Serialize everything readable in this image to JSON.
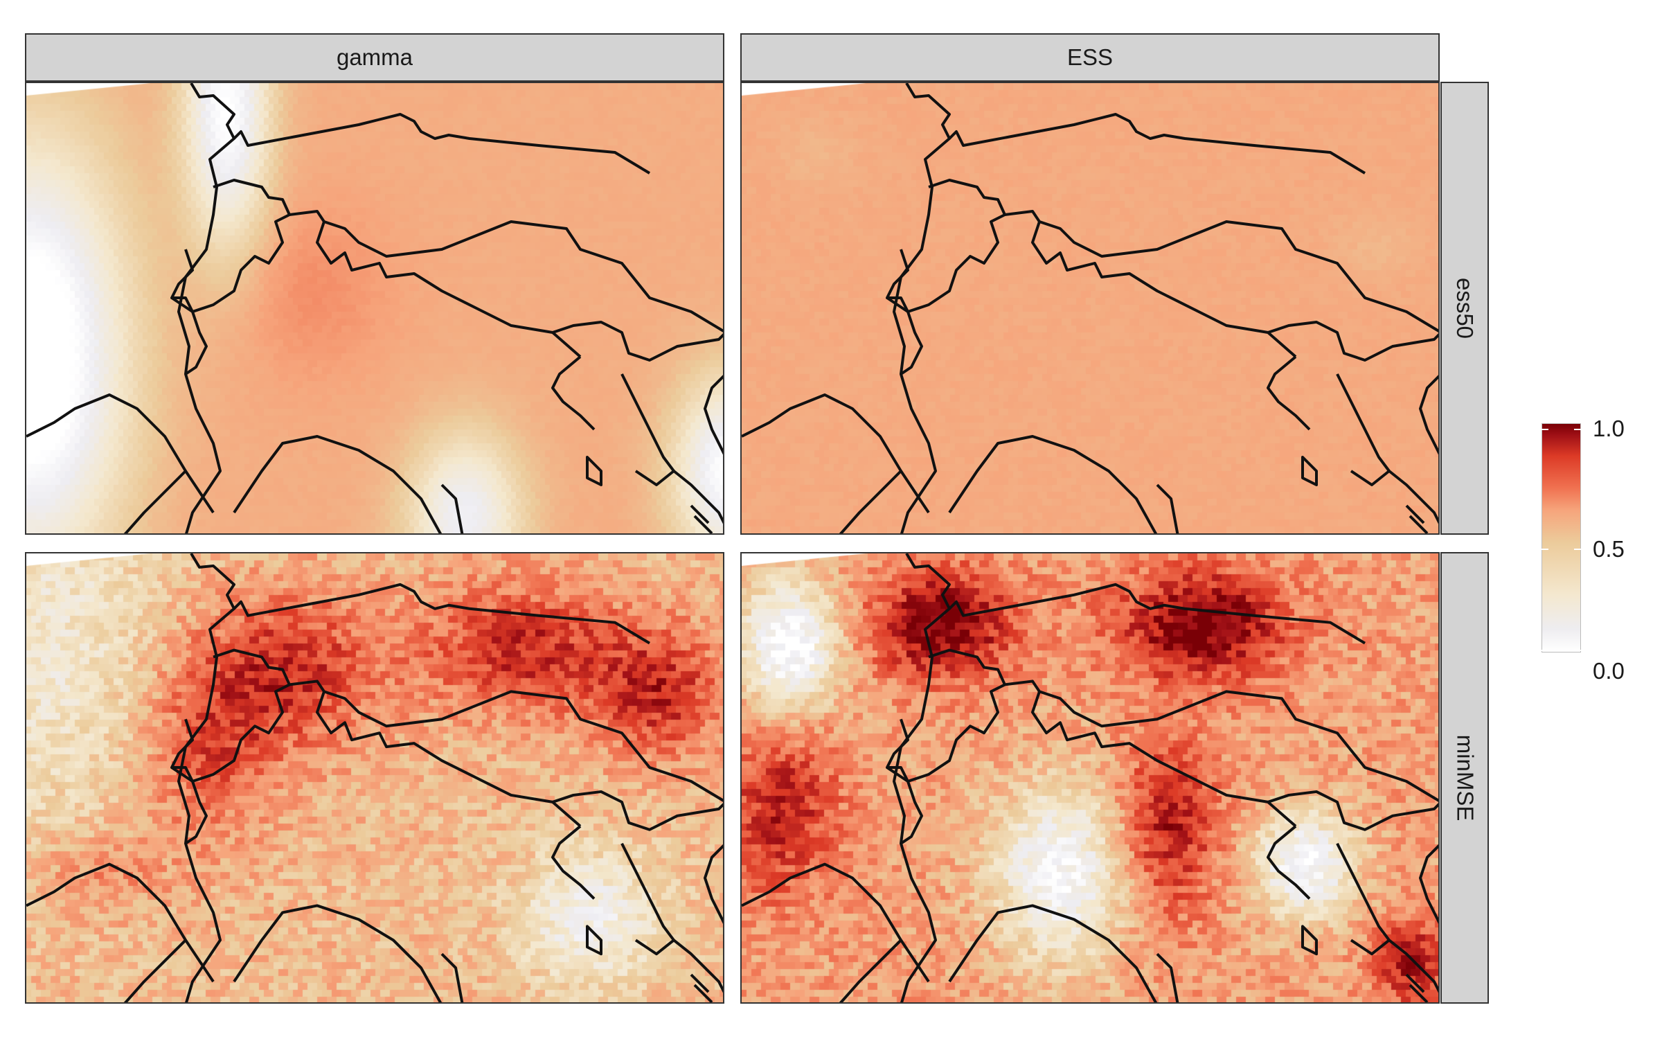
{
  "facets": {
    "columns": [
      "gamma",
      "ESS"
    ],
    "rows": [
      "ess50",
      "minMSE"
    ]
  },
  "legend": {
    "ticks": [
      "1.0",
      "0.5",
      "0.0"
    ],
    "values": [
      1.0,
      0.5,
      0.0
    ],
    "colors": [
      "#ffffff",
      "#f4e8cf",
      "#eccb9b",
      "#f6a57c",
      "#f07150",
      "#dc3a26",
      "#a01016",
      "#7a0006"
    ]
  },
  "map": {
    "region": "Alpine region (France, Switzerland, Austria, Italy, Slovenia, Croatia)",
    "fill_scale": "white to beige to orange to dark red"
  }
}
